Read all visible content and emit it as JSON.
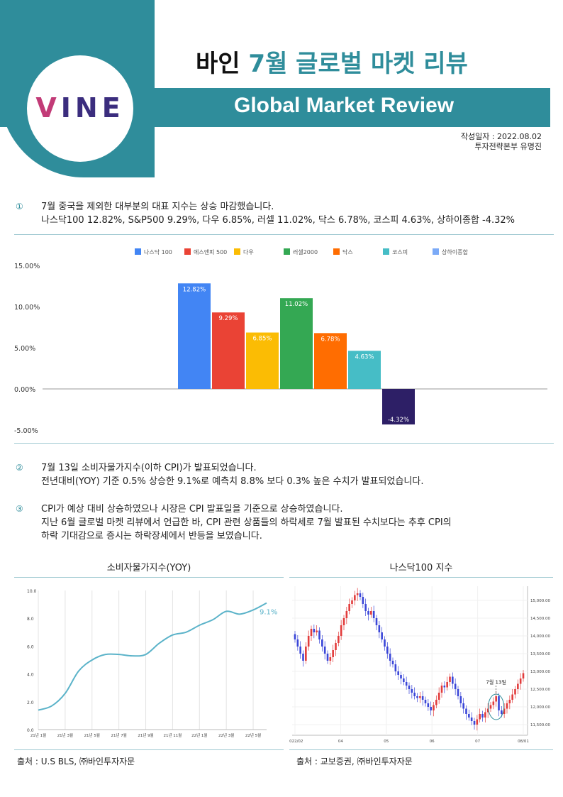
{
  "header": {
    "title_prefix": "바인 ",
    "title_accent": "7월 글로벌 마켓 리뷰",
    "subtitle": "Global Market Review",
    "logo_v": "V",
    "logo_rest": "INE",
    "date_line": "작성일자 : 2022.08.02",
    "author_line": "투자전략본부  유명진"
  },
  "sections": [
    {
      "num": "①",
      "lines": [
        "7월 중국을 제외한 대부분의 대표 지수는 상승 마감했습니다.",
        "나스닥100 12.82%,  S&P500  9.29%,  다우 6.85%,  러셀 11.02%,  닥스 6.78%,  코스피 4.63%,  상하이종합 -4.32%"
      ]
    },
    {
      "num": "②",
      "lines": [
        "7월 13일 소비자물가지수(이하 CPI)가 발표되었습니다.",
        "전년대비(YOY) 기준  0.5% 상승한 9.1%로  예측치 8.8% 보다 0.3% 높은 수치가 발표되었습니다."
      ]
    },
    {
      "num": "③",
      "lines": [
        "CPI가 예상 대비 상승하였으나 시장은 CPI 발표일을 기준으로 상승하였습니다.",
        "지난 6월 글로벌 마켓 리뷰에서 언급한 바, CPI 관련 상품들의 하락세로 7월 발표된 수치보다는 추후 CPI의",
        "하락 기대감으로 증시는 하락장세에서 반등을 보였습니다."
      ]
    }
  ],
  "chart_data": [
    {
      "type": "bar",
      "categories": [
        "나스닥 100",
        "에스앤피 500",
        "다우",
        "러셀2000",
        "닥스",
        "코스피",
        "상하이종합"
      ],
      "values": [
        12.82,
        9.29,
        6.85,
        11.02,
        6.78,
        4.63,
        -4.32
      ],
      "data_labels": [
        "12.82%",
        "9.29%",
        "6.85%",
        "11.02%",
        "6.78%",
        "4.63%",
        "-4.32%"
      ],
      "colors": [
        "#4285f4",
        "#ea4335",
        "#fbbc04",
        "#34a853",
        "#ff6d01",
        "#46bdc6",
        "#2d1f66"
      ],
      "legend_colors": [
        "#4285f4",
        "#ea4335",
        "#fbbc04",
        "#34a853",
        "#ff6d01",
        "#46bdc6",
        "#7baaf7"
      ],
      "ylim": [
        -5,
        15
      ],
      "yticks": [
        15,
        10,
        5,
        0,
        -5
      ],
      "ytick_labels": [
        "15.00%",
        "10.00%",
        "5.00%",
        "0.00%",
        "-5.00%"
      ],
      "legend_position": "top",
      "grid": false
    },
    {
      "type": "line",
      "title": "소비자물가지수(YOY)",
      "x": [
        "21년 1월",
        "21년 2월",
        "21년 3월",
        "21년 4월",
        "21년 5월",
        "21년 6월",
        "21년 7월",
        "21년 8월",
        "21년 9월",
        "21년 10월",
        "21년 11월",
        "21년 12월",
        "22년 1월",
        "22년 2월",
        "22년 3월",
        "22년 4월",
        "22년 5월",
        "22년 6월"
      ],
      "values": [
        1.4,
        1.7,
        2.6,
        4.2,
        5.0,
        5.4,
        5.4,
        5.3,
        5.4,
        6.2,
        6.8,
        7.0,
        7.5,
        7.9,
        8.5,
        8.3,
        8.6,
        9.1
      ],
      "xtick_labels": [
        "21년 1월",
        "21년 3월",
        "21년 5월",
        "21년 7월",
        "21년 9월",
        "21년 11월",
        "22년 1월",
        "22년 3월",
        "22년 5월"
      ],
      "ylim": [
        0,
        10
      ],
      "yticks": [
        0,
        2,
        4,
        6,
        8,
        10
      ],
      "ytick_labels": [
        "0.0",
        "2.0",
        "4.0",
        "6.0",
        "8.0",
        "10.0"
      ],
      "end_label": "9.1%",
      "color": "#5bb3c9",
      "grid": "vertical"
    },
    {
      "type": "candlestick",
      "title": "나스닥100 지수",
      "x_labels": [
        "2022/02",
        "04",
        "05",
        "06",
        "07",
        "08/01"
      ],
      "ylim": [
        11200,
        15400
      ],
      "yticks": [
        11500,
        12000,
        12500,
        13000,
        13500,
        14000,
        14500,
        15000
      ],
      "ytick_labels": [
        "11,500.00",
        "12,000.00",
        "12,500.00",
        "13,000.00",
        "13,500.00",
        "14,000.00",
        "14,500.00",
        "15,000.00"
      ],
      "closes": [
        13900,
        13700,
        13500,
        13300,
        13700,
        14000,
        14200,
        14100,
        14150,
        13900,
        13700,
        13500,
        13300,
        13400,
        13600,
        13800,
        14000,
        14300,
        14500,
        14700,
        14900,
        15000,
        15150,
        15200,
        15100,
        14900,
        14700,
        14600,
        14700,
        14500,
        14300,
        14100,
        13900,
        13700,
        13500,
        13300,
        13200,
        13000,
        12900,
        12800,
        12700,
        12600,
        12500,
        12400,
        12300,
        12250,
        12300,
        12200,
        12100,
        12000,
        11900,
        12050,
        12200,
        12400,
        12600,
        12550,
        12700,
        12850,
        12650,
        12500,
        12300,
        12100,
        11950,
        11800,
        11700,
        11600,
        11500,
        11650,
        11800,
        11700,
        11850,
        11950,
        12050,
        12150,
        12300,
        11900,
        11800,
        11950,
        12100,
        12200,
        12350,
        12500,
        12650,
        12800,
        12950
      ],
      "up_color": "#e23b3b",
      "down_color": "#3a46d8",
      "annotation": "7월 13일"
    }
  ],
  "sources": {
    "left": "출처 : U.S BLS, ㈜바인투자자문",
    "right": "출처 : 교보증권, ㈜바인투자자문"
  }
}
